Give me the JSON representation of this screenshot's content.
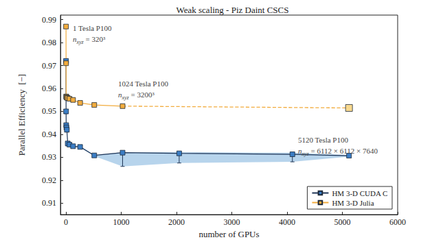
{
  "chart_data": {
    "type": "line",
    "title": "Weak scaling - Piz Daint CSCS",
    "x_label": "number of GPUs",
    "y_label": "Parallel Efficiency  [−]",
    "xlim": [
      -100,
      6000
    ],
    "xticks": [
      0,
      1000,
      2000,
      3000,
      4000,
      5000,
      6000
    ],
    "ylim": [
      0.905,
      0.992
    ],
    "yticks": [
      0.91,
      0.92,
      0.93,
      0.94,
      0.95,
      0.96,
      0.97,
      0.98,
      0.99
    ],
    "grid": false,
    "legend": "lower right",
    "series": [
      {
        "name": "HM 3-D CUDA C",
        "color": "#3b7dc4",
        "marker": "square",
        "line_style": "solid",
        "x": [
          1,
          2,
          4,
          8,
          16,
          32,
          64,
          128,
          256,
          512,
          1024,
          2048,
          4096,
          5120
        ],
        "values": [
          0.972,
          0.95,
          0.944,
          0.943,
          0.942,
          0.936,
          0.9355,
          0.9348,
          0.9345,
          0.9308,
          0.932,
          0.9317,
          0.9313,
          0.9307
        ],
        "error_low": [
          0.971,
          0.949,
          0.943,
          0.942,
          0.941,
          0.935,
          0.935,
          0.9345,
          0.9342,
          0.9305,
          0.926,
          0.9275,
          0.928,
          0.9303
        ],
        "error_high": [
          0.9725,
          0.9505,
          0.9445,
          0.9435,
          0.9425,
          0.9365,
          0.936,
          0.935,
          0.935,
          0.931,
          0.9322,
          0.9322,
          0.932,
          0.931
        ]
      },
      {
        "name": "HM 3-D Julia",
        "color": "#f2ac3e",
        "marker": "square",
        "line_style": "solid",
        "x": [
          1,
          2,
          4,
          8,
          16,
          32,
          64,
          128,
          256,
          512,
          1024
        ],
        "values": [
          0.987,
          0.971,
          0.9565,
          0.9562,
          0.956,
          0.9558,
          0.9555,
          0.955,
          0.9537,
          0.9528,
          0.9523
        ],
        "extrapolation": {
          "x": [
            1024,
            5120
          ],
          "values": [
            0.9523,
            0.9515
          ],
          "line_style": "dashed",
          "color": "#f8d98e"
        }
      }
    ],
    "annotations": [
      {
        "text": "1 Tesla P100",
        "var": "n",
        "sub": "xyz",
        "rhs": " = 320³"
      },
      {
        "text": "1024 Tesla P100",
        "var": "n",
        "sub": "xyz",
        "rhs": " = 3200³"
      },
      {
        "text": "5120 Tesla P100",
        "var": "n",
        "sub": "xyz",
        "rhs": " = 6112 × 6112 × 7640"
      }
    ]
  }
}
